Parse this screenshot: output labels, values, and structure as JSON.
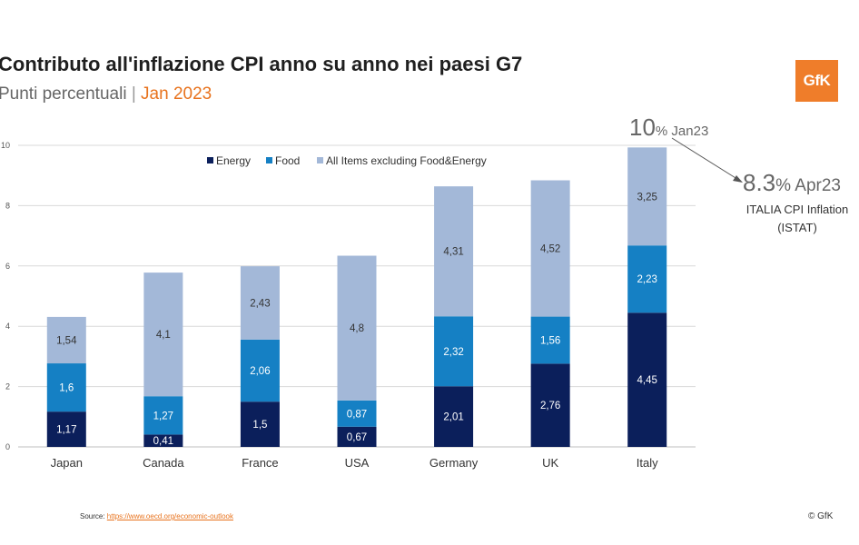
{
  "header": {
    "title": "Contributo all'inflazione CPI anno su anno nei paesi  G7",
    "subtitle_prefix": "Punti percentuali",
    "subtitle_separator": "|",
    "subtitle_date": "Jan 2023"
  },
  "logo": {
    "text": "GfK",
    "color": "#ef7d2a"
  },
  "callouts": {
    "jan_value": "10",
    "jan_unit": "% Jan23",
    "apr_value": "8.3",
    "apr_unit": "% Apr23",
    "istat_line1": "ITALIA CPI Inflation",
    "istat_line2": "(ISTAT)"
  },
  "footer": {
    "source_label": "Source: ",
    "source_link": "https://www.oecd.org/economic-outlook",
    "copyright": "© GfK"
  },
  "chart_data": {
    "type": "bar",
    "stacked": true,
    "categories": [
      "Japan",
      "Canada",
      "France",
      "USA",
      "Germany",
      "UK",
      "Italy"
    ],
    "series": [
      {
        "name": "Energy",
        "color": "#0b1f5b",
        "values": [
          1.17,
          0.41,
          1.5,
          0.67,
          2.01,
          2.76,
          4.45
        ],
        "labels": [
          "1,17",
          "0,41",
          "1,5",
          "0,67",
          "2,01",
          "2,76",
          "4,45"
        ]
      },
      {
        "name": "Food",
        "color": "#1580c4",
        "values": [
          1.6,
          1.27,
          2.06,
          0.87,
          2.32,
          1.56,
          2.23
        ],
        "labels": [
          "1,6",
          "1,27",
          "2,06",
          "0,87",
          "2,32",
          "1,56",
          "2,23"
        ]
      },
      {
        "name": "All Items excluding Food&Energy",
        "color": "#a3b8d8",
        "values": [
          1.54,
          4.1,
          2.43,
          4.8,
          4.31,
          4.52,
          3.25
        ],
        "labels": [
          "1,54",
          "4,1",
          "2,43",
          "4,8",
          "4,31",
          "4,52",
          "3,25"
        ]
      }
    ],
    "yticks": [
      "0",
      "2",
      "4",
      "6",
      "8",
      "10"
    ],
    "ylim": [
      0,
      10
    ],
    "grid": true,
    "legend": "top"
  }
}
